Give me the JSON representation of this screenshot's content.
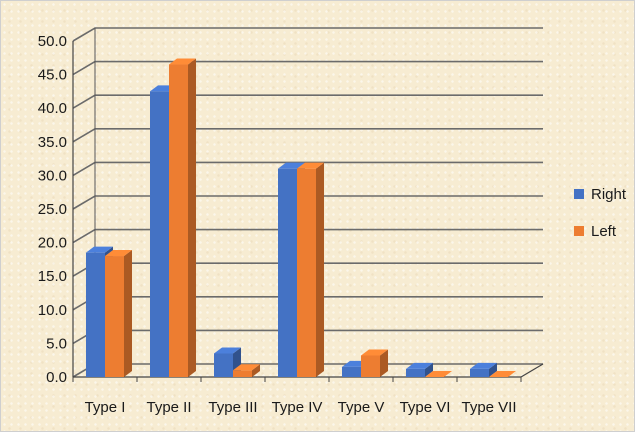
{
  "chart_data": {
    "type": "bar",
    "categories": [
      "Type I",
      "Type II",
      "Type III",
      "Type IV",
      "Type V",
      "Type VI",
      "Type VII"
    ],
    "series": [
      {
        "name": "Right",
        "values": [
          18.5,
          42.5,
          3.5,
          31.0,
          1.5,
          1.2,
          1.2
        ],
        "color": "#4472c4"
      },
      {
        "name": "Left",
        "values": [
          18.0,
          46.5,
          1.0,
          31.0,
          3.2,
          0.0,
          0.0
        ],
        "color": "#ed7d31"
      }
    ],
    "y_ticks": [
      "0.0",
      "5.0",
      "10.0",
      "15.0",
      "20.0",
      "25.0",
      "30.0",
      "35.0",
      "40.0",
      "45.0",
      "50.0"
    ],
    "ylim": [
      0,
      50
    ],
    "grid": true,
    "legend_position": "right",
    "style": "3d-clustered-column"
  }
}
